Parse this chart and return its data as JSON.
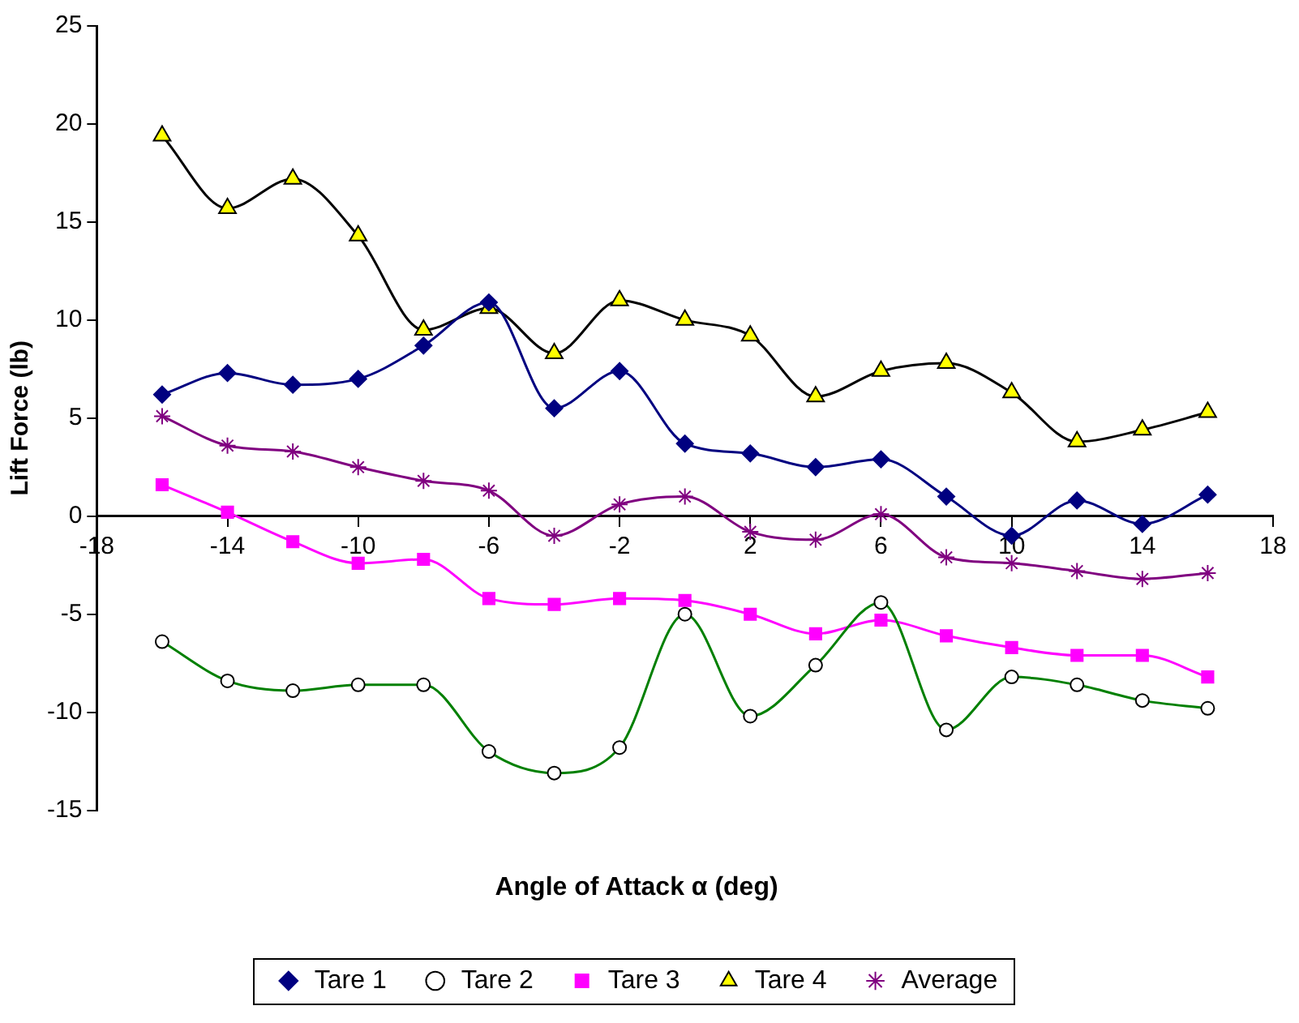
{
  "chart_data": {
    "type": "line",
    "xlabel": "Angle of Attack α (deg)",
    "ylabel": "Lift Force (lb)",
    "x": [
      -16,
      -14,
      -12,
      -10,
      -8,
      -6,
      -4,
      -2,
      0,
      2,
      4,
      6,
      8,
      10,
      12,
      14,
      16
    ],
    "xlim": [
      -18,
      18
    ],
    "xticks": [
      -18,
      -14,
      -10,
      -6,
      -2,
      2,
      6,
      10,
      14,
      18
    ],
    "ylim": [
      -15,
      25
    ],
    "yticks": [
      -15,
      -10,
      -5,
      0,
      5,
      10,
      15,
      20,
      25
    ],
    "grid": false,
    "legend": "bottom",
    "series": [
      {
        "name": "Tare 1",
        "color": "#000080",
        "marker": "diamond",
        "values": [
          6.2,
          7.3,
          6.7,
          7.0,
          8.7,
          10.9,
          5.5,
          7.4,
          3.7,
          3.2,
          2.5,
          2.9,
          1.0,
          -1.0,
          0.8,
          -0.4,
          1.1
        ]
      },
      {
        "name": "Tare 2",
        "color": "#008000",
        "marker": "circle",
        "values": [
          -6.4,
          -8.4,
          -8.9,
          -8.6,
          -8.6,
          -12.0,
          -13.1,
          -11.8,
          -5.0,
          -10.2,
          -7.6,
          -4.4,
          -10.9,
          -8.2,
          -8.6,
          -9.4,
          -9.8
        ]
      },
      {
        "name": "Tare 3",
        "color": "#ff00ff",
        "marker": "square",
        "values": [
          1.6,
          0.2,
          -1.3,
          -2.4,
          -2.2,
          -4.2,
          -4.5,
          -4.2,
          -4.3,
          -5.0,
          -6.0,
          -5.3,
          -6.1,
          -6.7,
          -7.1,
          -7.1,
          -8.2
        ]
      },
      {
        "name": "Tare 4",
        "color": "#000000",
        "marker": "triangle",
        "values": [
          19.4,
          15.7,
          17.2,
          14.3,
          9.5,
          10.6,
          8.3,
          11.0,
          10.0,
          9.2,
          6.1,
          7.4,
          7.8,
          6.3,
          3.8,
          4.4,
          5.3
        ]
      },
      {
        "name": "Average",
        "color": "#800080",
        "marker": "cross",
        "values": [
          5.1,
          3.6,
          3.3,
          2.5,
          1.8,
          1.3,
          -1.0,
          0.6,
          1.0,
          -0.8,
          -1.2,
          0.1,
          -2.1,
          -2.4,
          -2.8,
          -3.2,
          -2.9
        ]
      }
    ]
  }
}
